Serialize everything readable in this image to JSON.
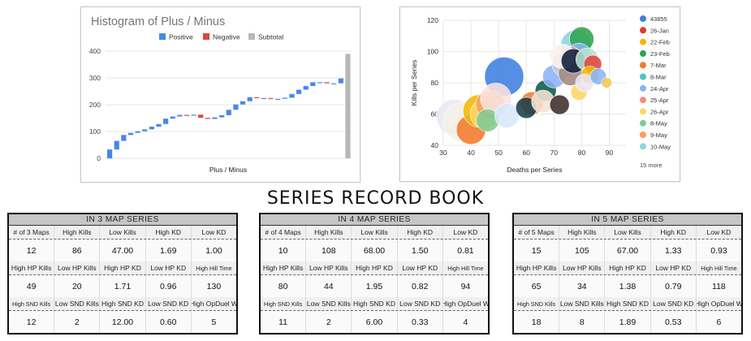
{
  "title": "SERIES RECORD BOOK",
  "chart_data": [
    {
      "type": "waterfall",
      "title": "Histogram of Plus / Minus",
      "xlabel": "Plus / Minus",
      "ylabel": "",
      "ylim": [
        0,
        400
      ],
      "y_ticks": [
        "0",
        "100",
        "200",
        "300",
        "400"
      ],
      "legend": [
        "Positive",
        "Negative",
        "Subtotal"
      ],
      "legend_position": "top",
      "colors": {
        "positive": "#4a86e8",
        "negative": "#e0463c",
        "subtotal": "#b7b7b7"
      },
      "deltas": [
        33,
        32,
        22,
        8,
        6,
        7,
        10,
        10,
        20,
        8,
        6,
        -2,
        3,
        -12,
        -4,
        6,
        8,
        20,
        20,
        12,
        15,
        -3,
        0,
        -3,
        0,
        4,
        14,
        16,
        14,
        14,
        0,
        -4,
        0,
        18
      ],
      "subtotal": 390
    },
    {
      "type": "scatter",
      "xlabel": "Deaths per Series",
      "ylabel": "Kills per Series",
      "xlim": [
        30,
        96
      ],
      "ylim": [
        40,
        120
      ],
      "x_ticks": [
        "30",
        "40",
        "50",
        "60",
        "70",
        "80",
        "90"
      ],
      "y_ticks": [
        "40",
        "60",
        "80",
        "100",
        "120"
      ],
      "legend": [
        {
          "name": "43855",
          "color": "#3d7fe0"
        },
        {
          "name": "26-Jan",
          "color": "#db3b2f"
        },
        {
          "name": "22-Feb",
          "color": "#f2b705"
        },
        {
          "name": "23-Feb",
          "color": "#2fa44f"
        },
        {
          "name": "7-Mar",
          "color": "#f37a2a"
        },
        {
          "name": "8-Mar",
          "color": "#4fc3c6"
        },
        {
          "name": "24-Apr",
          "color": "#8ab4f8"
        },
        {
          "name": "25-Apr",
          "color": "#f28b82"
        },
        {
          "name": "26-Apr",
          "color": "#fdd663"
        },
        {
          "name": "8-May",
          "color": "#81c995"
        },
        {
          "name": "9-May",
          "color": "#f9a05c"
        },
        {
          "name": "10-May",
          "color": "#8ad4e0"
        }
      ],
      "legend_more": "15 more",
      "legend_position": "right",
      "points": [
        {
          "x": 52,
          "y": 84,
          "size": 1.0,
          "color": "#3d7fe0"
        },
        {
          "x": 34,
          "y": 58,
          "size": 0.9,
          "color": "#e8e8f5"
        },
        {
          "x": 37,
          "y": 55,
          "size": 1.0,
          "color": "#f4f0e8"
        },
        {
          "x": 40,
          "y": 50,
          "size": 0.7,
          "color": "#f37a2a"
        },
        {
          "x": 43,
          "y": 62,
          "size": 0.8,
          "color": "#f2b705"
        },
        {
          "x": 45,
          "y": 60,
          "size": 0.7,
          "color": "#fdd663"
        },
        {
          "x": 47,
          "y": 66,
          "size": 0.7,
          "color": "#f9a05c"
        },
        {
          "x": 49,
          "y": 70,
          "size": 0.75,
          "color": "#fbe3e0"
        },
        {
          "x": 46,
          "y": 56,
          "size": 0.5,
          "color": "#81c995"
        },
        {
          "x": 53,
          "y": 59,
          "size": 0.55,
          "color": "#d7e8f7"
        },
        {
          "x": 62,
          "y": 67,
          "size": 0.5,
          "color": "#f37a2a"
        },
        {
          "x": 60,
          "y": 64,
          "size": 0.45,
          "color": "#1a3d4a"
        },
        {
          "x": 67,
          "y": 75,
          "size": 0.45,
          "color": "#0d5a4a"
        },
        {
          "x": 66,
          "y": 68,
          "size": 0.5,
          "color": "#f4e2d8"
        },
        {
          "x": 70,
          "y": 84,
          "size": 0.5,
          "color": "#8ab4f8"
        },
        {
          "x": 72,
          "y": 66,
          "size": 0.4,
          "color": "#3b2f2a"
        },
        {
          "x": 74,
          "y": 92,
          "size": 0.6,
          "color": "#c9c9d9"
        },
        {
          "x": 76,
          "y": 86,
          "size": 0.55,
          "color": "#a1887f"
        },
        {
          "x": 78,
          "y": 104,
          "size": 0.75,
          "color": "#8ad4e0"
        },
        {
          "x": 80,
          "y": 108,
          "size": 0.55,
          "color": "#2fa44f"
        },
        {
          "x": 79,
          "y": 97,
          "size": 0.6,
          "color": "#8ab4f8"
        },
        {
          "x": 76,
          "y": 96,
          "size": 0.5,
          "color": "#f28b82"
        },
        {
          "x": 73,
          "y": 97,
          "size": 0.55,
          "color": "#f7f2ee"
        },
        {
          "x": 77,
          "y": 94,
          "size": 0.55,
          "color": "#0f1c3a"
        },
        {
          "x": 82,
          "y": 95,
          "size": 0.5,
          "color": "#b7e1cd"
        },
        {
          "x": 84,
          "y": 92,
          "size": 0.35,
          "color": "#e0463c"
        },
        {
          "x": 83,
          "y": 85,
          "size": 0.35,
          "color": "#f2b705"
        },
        {
          "x": 79,
          "y": 74,
          "size": 0.3,
          "color": "#fdd663"
        },
        {
          "x": 81,
          "y": 80,
          "size": 0.35,
          "color": "#ece4f5"
        },
        {
          "x": 86,
          "y": 84,
          "size": 0.3,
          "color": "#8ab4f8"
        },
        {
          "x": 89,
          "y": 80,
          "size": 0.12,
          "color": "#f2c94c"
        }
      ]
    }
  ],
  "tables": [
    {
      "header": "IN 3 MAP SERIES",
      "rows": [
        {
          "labels": [
            "# of 3 Maps",
            "High Kills",
            "Low Kills",
            "High KD",
            "Low KD"
          ],
          "values": [
            "12",
            "86",
            "47.00",
            "1.69",
            "1.00"
          ]
        },
        {
          "labels": [
            "High HP Kills",
            "Low HP Kills",
            "High HP KD",
            "Low HP KD",
            "High Hill Time"
          ],
          "values": [
            "49",
            "20",
            "1.71",
            "0.96",
            "130"
          ]
        },
        {
          "labels": [
            "High SND Kills",
            "Low SND Kills",
            "High SND KD",
            "Low SND KD",
            "High OpDuel W"
          ],
          "values": [
            "12",
            "2",
            "12.00",
            "0.60",
            "5"
          ]
        }
      ]
    },
    {
      "header": "IN 4 MAP SERIES",
      "rows": [
        {
          "labels": [
            "# of 4 Maps",
            "High Kills",
            "Low Kills",
            "High KD",
            "Low KD"
          ],
          "values": [
            "10",
            "108",
            "68.00",
            "1.50",
            "0.81"
          ]
        },
        {
          "labels": [
            "High HP Kills",
            "Low HP Kills",
            "High HP KD",
            "Low HP KD",
            "High Hill Time"
          ],
          "values": [
            "80",
            "44",
            "1.95",
            "0.82",
            "94"
          ]
        },
        {
          "labels": [
            "High SND Kills",
            "Low SND Kills",
            "High SND KD",
            "Low SND KD",
            "High OpDuel W"
          ],
          "values": [
            "11",
            "2",
            "6.00",
            "0.33",
            "4"
          ]
        }
      ]
    },
    {
      "header": "IN 5 MAP SERIES",
      "rows": [
        {
          "labels": [
            "# of 5 Maps",
            "High Kills",
            "Low Kills",
            "High KD",
            "Low KD"
          ],
          "values": [
            "15",
            "105",
            "67.00",
            "1.33",
            "0.93"
          ]
        },
        {
          "labels": [
            "High HP Kills",
            "Low HP Kills",
            "High HP KD",
            "Low HP KD",
            "High Hill Time"
          ],
          "values": [
            "65",
            "34",
            "1.38",
            "0.79",
            "118"
          ]
        },
        {
          "labels": [
            "High SND Kills",
            "Low SND Kills",
            "High SND KD",
            "Low SND KD",
            "High OpDuel W"
          ],
          "values": [
            "18",
            "8",
            "1.89",
            "0.53",
            "6"
          ]
        }
      ]
    }
  ]
}
